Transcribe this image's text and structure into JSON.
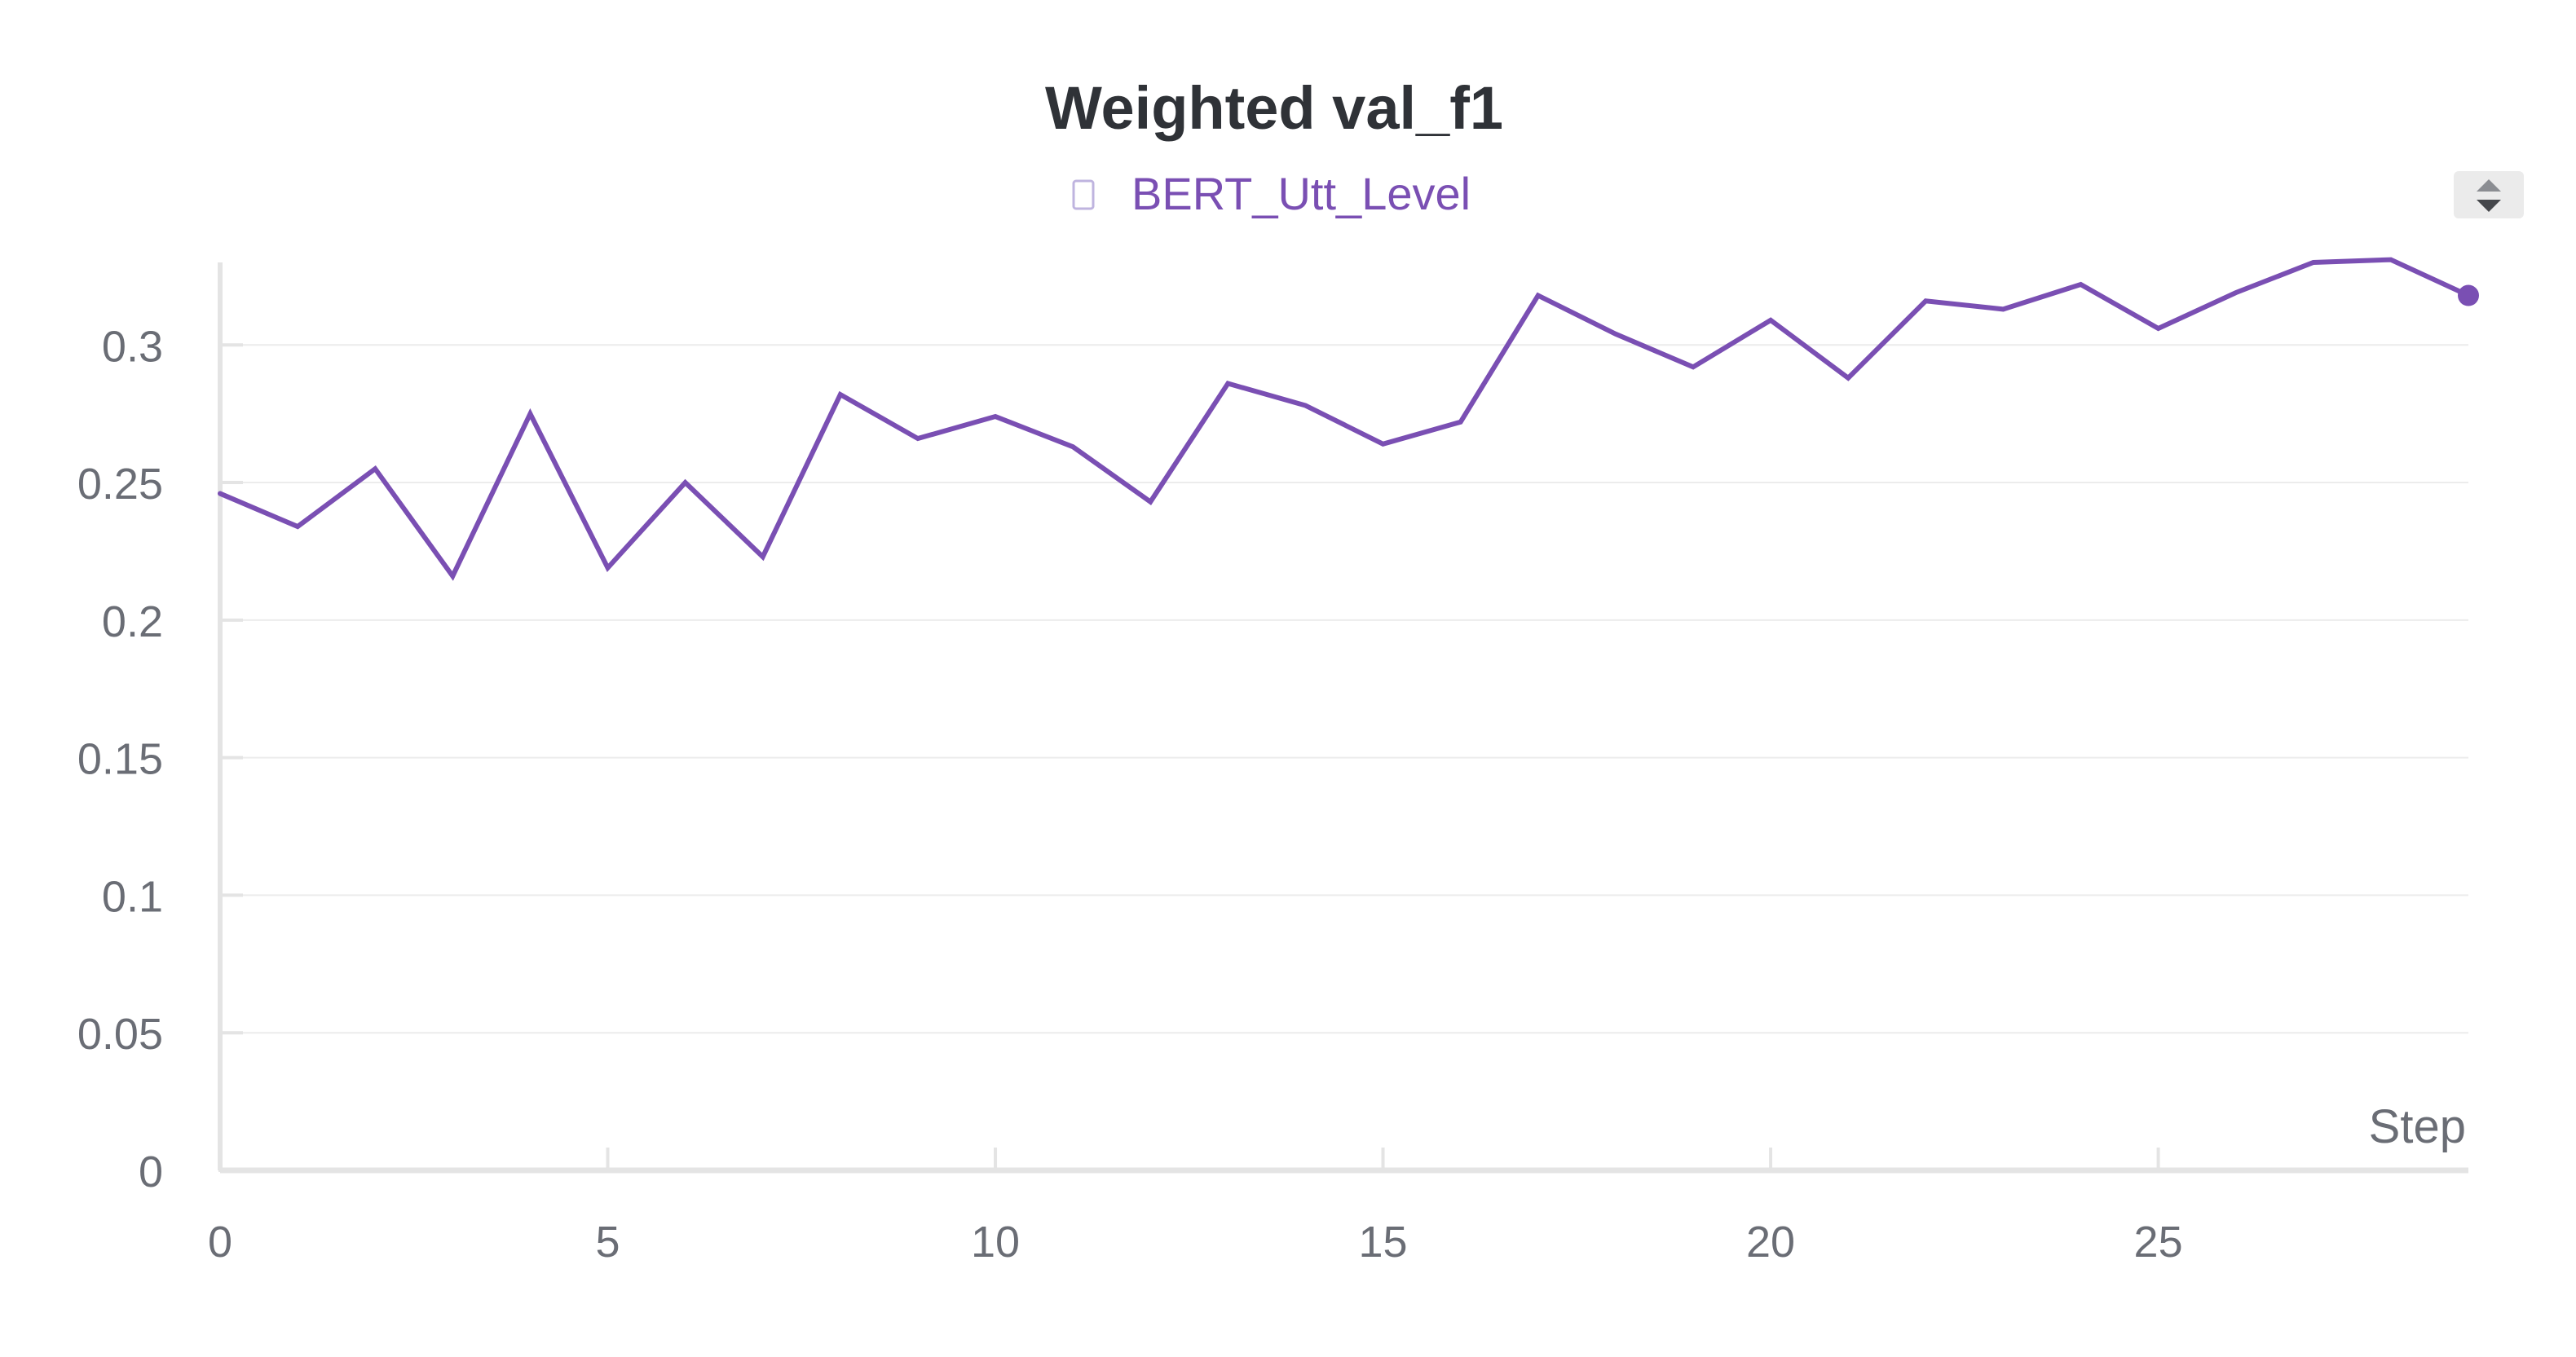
{
  "colors": {
    "series": "#7a4fb3",
    "axis": "#e4e4e4",
    "grid": "#ececec",
    "text": "#6a6d75",
    "title": "#2f3237"
  },
  "chart_data": {
    "type": "line",
    "title": "Weighted val_f1",
    "xlabel": "Step",
    "ylabel": "",
    "xlim": [
      0,
      29
    ],
    "ylim": [
      0,
      0.33
    ],
    "grid": true,
    "legend_position": "top-center",
    "x_ticks": [
      "0",
      "5",
      "10",
      "15",
      "20",
      "25"
    ],
    "y_ticks": [
      "0",
      "0.05",
      "0.1",
      "0.15",
      "0.2",
      "0.25",
      "0.3"
    ],
    "series": [
      {
        "name": "BERT_Utt_Level",
        "x": [
          0,
          1,
          2,
          3,
          4,
          5,
          6,
          7,
          8,
          9,
          10,
          11,
          12,
          13,
          14,
          15,
          16,
          17,
          18,
          19,
          20,
          21,
          22,
          23,
          24,
          25,
          26,
          27,
          28,
          29
        ],
        "values": [
          0.246,
          0.234,
          0.255,
          0.216,
          0.275,
          0.219,
          0.25,
          0.223,
          0.282,
          0.266,
          0.274,
          0.263,
          0.243,
          0.286,
          0.278,
          0.264,
          0.272,
          0.318,
          0.304,
          0.292,
          0.309,
          0.288,
          0.316,
          0.313,
          0.322,
          0.306,
          0.319,
          0.33,
          0.331,
          0.318
        ]
      }
    ]
  },
  "ui": {
    "legend_checkbox": "unchecked",
    "resize_control": "sort-arrows-icon"
  }
}
